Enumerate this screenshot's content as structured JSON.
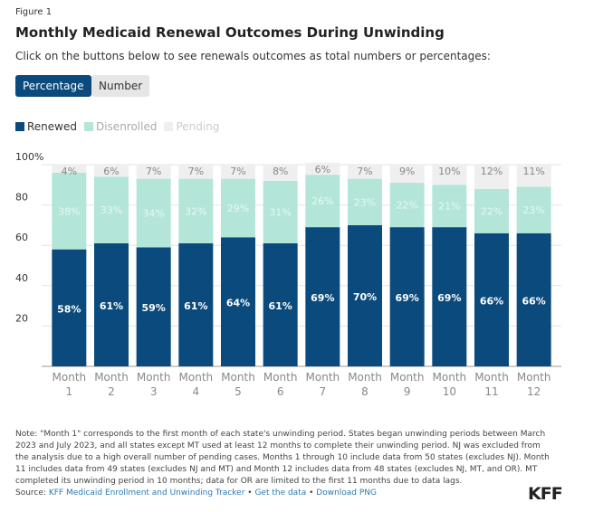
{
  "figure_label": "Figure 1",
  "subtitle": "Click on the buttons below to see renewals outcomes as total numbers or percentages:",
  "buttons": {
    "percentage": "Percentage",
    "number": "Number"
  },
  "chart_data": {
    "type": "bar",
    "stacked": true,
    "title": "Monthly Medicaid Renewal Outcomes During Unwinding",
    "categories": [
      "Month 1",
      "Month 2",
      "Month 3",
      "Month 4",
      "Month 5",
      "Month 6",
      "Month 7",
      "Month 8",
      "Month 9",
      "Month 10",
      "Month 11",
      "Month 12"
    ],
    "series": [
      {
        "name": "Renewed",
        "color": "#0b4a7c",
        "values": [
          58,
          61,
          59,
          61,
          64,
          61,
          69,
          70,
          69,
          69,
          66,
          66
        ]
      },
      {
        "name": "Disenrolled",
        "color": "#b3e6d9",
        "values": [
          38,
          33,
          34,
          32,
          29,
          31,
          26,
          23,
          22,
          21,
          22,
          23
        ]
      },
      {
        "name": "Pending",
        "color": "#efefef",
        "values": [
          4,
          6,
          7,
          7,
          7,
          8,
          6,
          7,
          9,
          10,
          12,
          11
        ]
      }
    ],
    "yticks": [
      "20",
      "40",
      "60",
      "80",
      "100%"
    ],
    "ylim": [
      0,
      100
    ],
    "grid": true,
    "legend": "top-left"
  },
  "note": "Note: \"Month 1\" corresponds to the first month of each state's unwinding period. States began unwinding periods between March 2023 and July 2023, and all states except MT used at least 12 months to complete their unwinding period. NJ was excluded from the analysis due to a high overall number of pending cases. Months 1 through 10 include data from 50 states (excludes NJ). Month 11 includes data from 49 states (excludes NJ and MT) and Month 12 includes data from 48 states (excludes NJ, MT, and OR). MT completed its unwinding period in 10 months; data for OR are limited to the first 11 months due to data lags.",
  "source": {
    "label": "Source:",
    "tracker": "KFF Medicaid Enrollment and Unwinding Tracker",
    "sep": " • ",
    "get_data": "Get the data",
    "download": "Download PNG"
  },
  "logo": "KFF"
}
